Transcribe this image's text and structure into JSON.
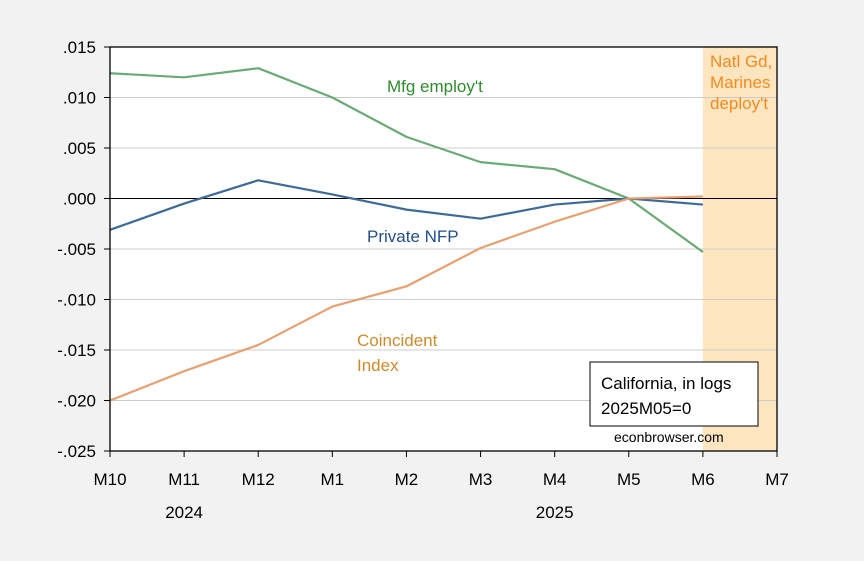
{
  "chart_data": {
    "type": "line",
    "title": "",
    "xlabel": "",
    "ylabel": "",
    "categories": [
      "M10",
      "M11",
      "M12",
      "M1",
      "M2",
      "M3",
      "M4",
      "M5",
      "M6",
      "M7"
    ],
    "year_labels": [
      {
        "label": "2024",
        "center_between": [
          "M10",
          "M12"
        ]
      },
      {
        "label": "2025",
        "center_between": [
          "M1",
          "M7"
        ]
      }
    ],
    "ylim": [
      -0.025,
      0.015
    ],
    "yticks": [
      0.015,
      0.01,
      0.005,
      0.0,
      -0.005,
      -0.01,
      -0.015,
      -0.02,
      -0.025
    ],
    "ytick_labels": [
      ".015",
      ".010",
      ".005",
      ".000",
      "-.005",
      "-.010",
      "-.015",
      "-.020",
      "-.025"
    ],
    "grid": true,
    "zero_line": true,
    "series": [
      {
        "name": "Mfg employ't",
        "color": "#6aaa74",
        "label_color": "#2e8b2e",
        "values": [
          0.0124,
          0.012,
          0.0129,
          0.01,
          0.0061,
          0.0036,
          0.0029,
          0.0,
          -0.0053
        ]
      },
      {
        "name": "Private NFP",
        "color": "#3d6b99",
        "label_color": "#1f4e8c",
        "values": [
          -0.0031,
          -0.0005,
          0.0018,
          0.0004,
          -0.0011,
          -0.002,
          -0.0006,
          0.0,
          -0.0006
        ]
      },
      {
        "name": "Coincident Index",
        "label_lines": [
          "Coincident",
          "Index"
        ],
        "color": "#e8a070",
        "label_color": "#d08a2a",
        "values": [
          -0.02,
          -0.0171,
          -0.0145,
          -0.0107,
          -0.0087,
          -0.0049,
          -0.0023,
          0.0,
          0.0002
        ]
      }
    ],
    "shaded_region": {
      "from": "M6",
      "to": "M7",
      "color": "#fde5c0",
      "label_lines": [
        "Natl Gd,",
        "Marines",
        "deploy't"
      ],
      "label_color": "#f58a1f"
    },
    "annotation_box": {
      "lines": [
        "California, in logs",
        "2025M05=0"
      ]
    },
    "source": "econbrowser.com"
  }
}
